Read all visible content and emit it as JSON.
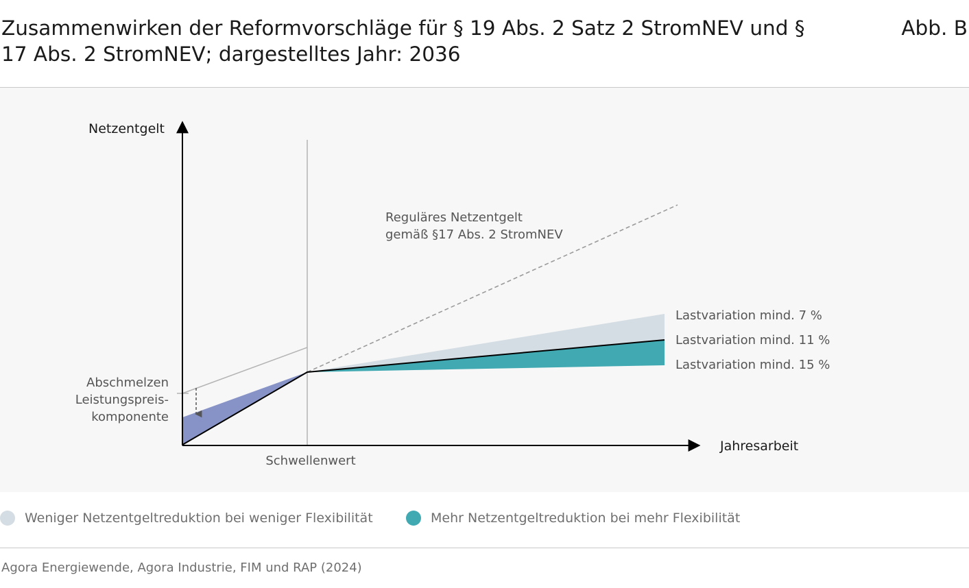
{
  "title": "Zusammenwirken der Reformvorschläge für § 19 Abs. 2 Satz 2 StromNEV und § 17 Abs. 2 StromNEV; dargestelltes Jahr: 2036",
  "figure_label": "Abb. B",
  "diagram": {
    "y_axis_label": "Netzentgelt",
    "x_axis_label": "Jahresarbeit",
    "threshold_label": "Schwellenwert",
    "regular_fee_label_line1": "Reguläres Netzentgelt",
    "regular_fee_label_line2": "gemäß §17 Abs. 2 StromNEV",
    "phaseout_label_line1": "Abschmelzen",
    "phaseout_label_line2": "Leistungspreis-",
    "phaseout_label_line3": "komponente",
    "load_variation_7": "Lastvariation mind. 7 %",
    "load_variation_11": "Lastvariation mind. 11 %",
    "load_variation_15": "Lastvariation mind. 15 %"
  },
  "legend": {
    "less_flexibility": "Weniger Netzentgeltreduktion bei weniger Flexibilität",
    "more_flexibility": "Mehr Netzentgeltreduktion bei mehr Flexibilität"
  },
  "source": "Agora Energiewende, Agora Industrie, FIM und RAP (2024)",
  "colors": {
    "less_flexibility": "#d4dde3",
    "more_flexibility": "#40a9b2",
    "phaseout_area": "#8793c7",
    "dashed_line": "#9a9a9a",
    "axis": "#000000"
  }
}
